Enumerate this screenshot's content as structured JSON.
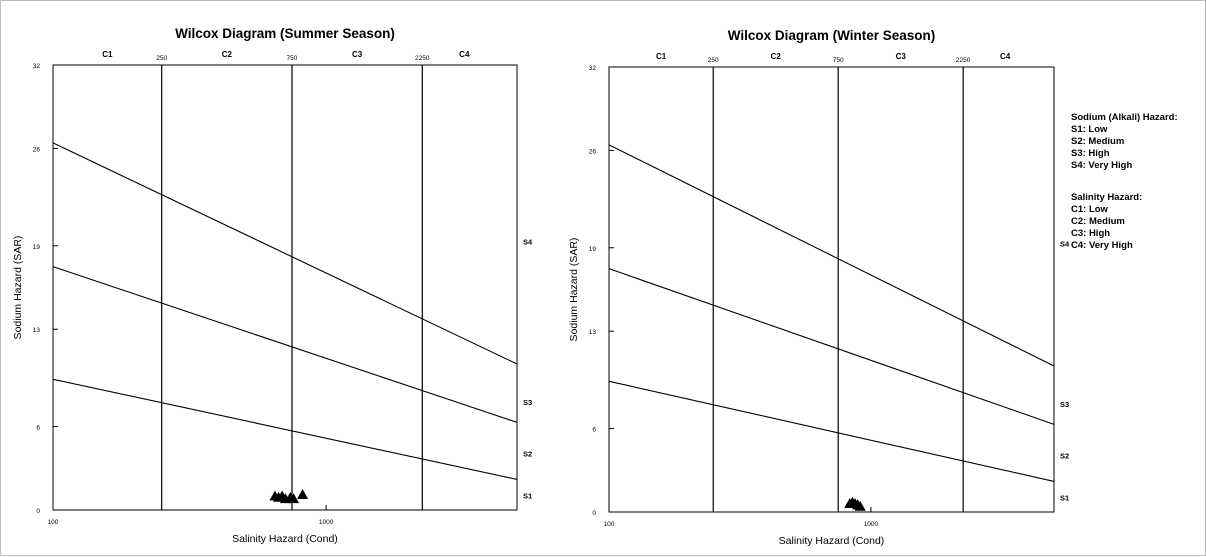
{
  "chart_data": [
    {
      "type": "scatter",
      "title": "Wilcox Diagram (Summer Season)",
      "xlabel": "Salinity Hazard (Cond)",
      "ylabel": "Sodium Hazard (SAR)",
      "x_scale": "log",
      "xlim": [
        100,
        5000
      ],
      "ylim": [
        0,
        32
      ],
      "x_ticks": [
        100,
        1000
      ],
      "x_tick_labels": [
        "100",
        "1000"
      ],
      "y_ticks": [
        0,
        6,
        13,
        19,
        26,
        32
      ],
      "y_tick_labels": [
        "0",
        "6",
        "13",
        "19",
        "26",
        "32"
      ],
      "grid": false,
      "salinity_boundaries": [
        250,
        750,
        2250
      ],
      "boundary_labels": [
        "250",
        "750",
        "2250"
      ],
      "salinity_classes": [
        "C1",
        "C2",
        "C3",
        "C4"
      ],
      "sodium_classes": [
        "S1",
        "S2",
        "S3",
        "S4"
      ],
      "sodium_lines": [
        {
          "y_at_100": 9.4,
          "y_at_5000": 2.2
        },
        {
          "y_at_100": 17.5,
          "y_at_5000": 6.3
        },
        {
          "y_at_100": 26.4,
          "y_at_5000": 10.5
        }
      ],
      "series": [
        {
          "marker": "triangle",
          "color": "#000000",
          "x": [
            650,
            670,
            690,
            710,
            740,
            760,
            820
          ],
          "y": [
            1.0,
            0.9,
            1.0,
            0.8,
            0.9,
            0.8,
            1.1
          ]
        }
      ]
    },
    {
      "type": "scatter",
      "title": "Wilcox Diagram (Winter Season)",
      "xlabel": "Salinity Hazard (Cond)",
      "ylabel": "Sodium Hazard (SAR)",
      "x_scale": "log",
      "xlim": [
        100,
        5000
      ],
      "ylim": [
        0,
        32
      ],
      "x_ticks": [
        100,
        1000
      ],
      "x_tick_labels": [
        "100",
        "1000"
      ],
      "y_ticks": [
        0,
        6,
        13,
        19,
        26,
        32
      ],
      "y_tick_labels": [
        "0",
        "6",
        "13",
        "19",
        "26",
        "32"
      ],
      "grid": false,
      "salinity_boundaries": [
        250,
        750,
        2250
      ],
      "boundary_labels": [
        "250",
        "750",
        "2250"
      ],
      "salinity_classes": [
        "C1",
        "C2",
        "C3",
        "C4"
      ],
      "sodium_classes": [
        "S1",
        "S2",
        "S3",
        "S4"
      ],
      "sodium_lines": [
        {
          "y_at_100": 9.4,
          "y_at_5000": 2.2
        },
        {
          "y_at_100": 17.5,
          "y_at_5000": 6.3
        },
        {
          "y_at_100": 26.4,
          "y_at_5000": 10.5
        }
      ],
      "series": [
        {
          "marker": "triangle",
          "color": "#000000",
          "x": [
            830,
            850,
            870,
            890,
            910
          ],
          "y": [
            0.6,
            0.7,
            0.6,
            0.5,
            0.4
          ]
        }
      ]
    }
  ],
  "legend": {
    "sodium_title": "Sodium (Alkali) Hazard:",
    "sodium_items": [
      "S1: Low",
      "S2: Medium",
      "S3: High",
      "S4: Very High"
    ],
    "salinity_title": "Salinity Hazard:",
    "salinity_items": [
      "C1: Low",
      "C2: Medium",
      "C3: High",
      "C4: Very High"
    ]
  }
}
